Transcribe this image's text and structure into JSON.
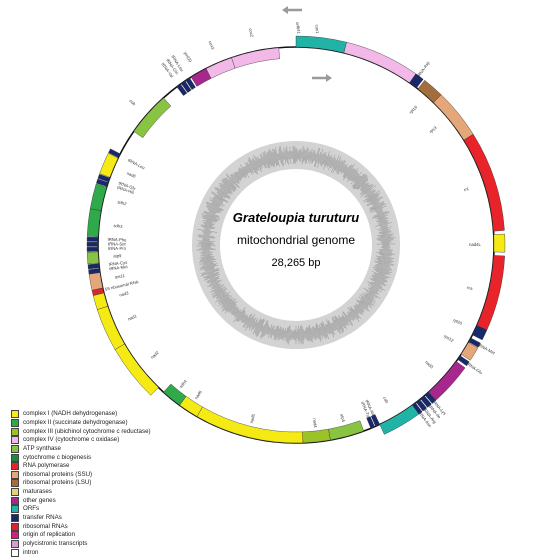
{
  "genome": {
    "species": "Grateloupia turuturu",
    "subtitle": "mitochondrial genome",
    "size_label": "28,265 bp"
  },
  "colors": {
    "complex_I": "#f5ea14",
    "complex_II": "#2eaa4a",
    "complex_III": "#9cc229",
    "complex_IV": "#f2b9e8",
    "atp": "#89c342",
    "ccm": "#1c8a3a",
    "rnapol": "#e8232a",
    "rps": "#e5a67a",
    "rpl": "#a36d3d",
    "maturase": "#e0d27a",
    "other": "#a7278f",
    "orf": "#21b3a6",
    "trna": "#18286b",
    "rrna": "#d9262d",
    "ori": "#cf2380",
    "poly": "#d99bd3",
    "intron": "#ffffff",
    "gc_dark": "#9d9d9d",
    "gc_light": "#d3d3d3"
  },
  "legend": [
    {
      "label": "complex I (NADH dehydrogenase)",
      "color": "#f5ea14"
    },
    {
      "label": "complex II (succinate dehydrogenase)",
      "color": "#2eaa4a"
    },
    {
      "label": "complex III (ubichinol cytochrome c reductase)",
      "color": "#9cc229"
    },
    {
      "label": "complex IV (cytochrome c oxidase)",
      "color": "#f2b9e8"
    },
    {
      "label": "ATP synthase",
      "color": "#89c342"
    },
    {
      "label": "cytochrome c biogenesis",
      "color": "#1c8a3a"
    },
    {
      "label": "RNA polymerase",
      "color": "#e8232a"
    },
    {
      "label": "ribosomal proteins (SSU)",
      "color": "#e5a67a"
    },
    {
      "label": "ribosomal proteins (LSU)",
      "color": "#a36d3d"
    },
    {
      "label": "maturases",
      "color": "#e0d27a"
    },
    {
      "label": "other genes",
      "color": "#a7278f"
    },
    {
      "label": "ORFs",
      "color": "#21b3a6"
    },
    {
      "label": "transfer RNAs",
      "color": "#18286b"
    },
    {
      "label": "ribosomal RNAs",
      "color": "#d9262d"
    },
    {
      "label": "origin of replication",
      "color": "#cf2380"
    },
    {
      "label": "polycistronic transcripts",
      "color": "#d99bd3"
    },
    {
      "label": "intron",
      "color": "#ffffff"
    }
  ],
  "genes": [
    {
      "name": "orf641",
      "start": 0,
      "end": 14,
      "strand": "out",
      "color": "#21b3a6"
    },
    {
      "name": "cox1",
      "start": 14,
      "end": 35,
      "strand": "out",
      "color": "#f2b9e8"
    },
    {
      "name": "tRNA-Asp",
      "start": 35,
      "end": 37.5,
      "strand": "out",
      "color": "#18286b"
    },
    {
      "name": "rpl16",
      "start": 38,
      "end": 44,
      "strand": "out",
      "color": "#a36d3d"
    },
    {
      "name": "rps3",
      "start": 44,
      "end": 58,
      "strand": "out",
      "color": "#e5a67a"
    },
    {
      "name": "rnl",
      "start": 58,
      "end": 86,
      "strand": "out",
      "color": "#e8232a"
    },
    {
      "name": "nad4L",
      "start": 87,
      "end": 92,
      "strand": "out",
      "color": "#f5ea14"
    },
    {
      "name": "rns",
      "start": 93,
      "end": 114,
      "strand": "out",
      "color": "#e8232a"
    },
    {
      "name": "rpl20",
      "start": 114,
      "end": 117,
      "strand": "out",
      "color": "#18286b"
    },
    {
      "name": "tRNA-Met",
      "start": 118,
      "end": 119.3,
      "strand": "out",
      "color": "#18286b"
    },
    {
      "name": "rps12",
      "start": 119.5,
      "end": 123.5,
      "strand": "out",
      "color": "#e5a67a"
    },
    {
      "name": "tRNA-Glu",
      "start": 124,
      "end": 125.3,
      "strand": "out",
      "color": "#18286b"
    },
    {
      "name": "nad3",
      "start": 126,
      "end": 138,
      "strand": "out",
      "color": "#a7278f"
    },
    {
      "name": "tRNA-Lys",
      "start": 138,
      "end": 139.3,
      "strand": "out",
      "color": "#18286b"
    },
    {
      "name": "tRNA-Ile",
      "start": 139.6,
      "end": 141,
      "strand": "out",
      "color": "#18286b"
    },
    {
      "name": "tRNA-Arg",
      "start": 141.3,
      "end": 142.6,
      "strand": "out",
      "color": "#18286b"
    },
    {
      "name": "tRNA-Asn",
      "start": 142.9,
      "end": 144.2,
      "strand": "out",
      "color": "#18286b"
    },
    {
      "name": "cob",
      "start": 144,
      "end": 155,
      "strand": "out",
      "color": "#21b3a6"
    },
    {
      "name": "tRNA-Ala",
      "start": 155,
      "end": 156.3,
      "strand": "in",
      "color": "#18286b"
    },
    {
      "name": "tRNA-Trp",
      "start": 156.6,
      "end": 157.8,
      "strand": "in",
      "color": "#18286b"
    },
    {
      "name": "atp4",
      "start": 160,
      "end": 170,
      "strand": "in",
      "color": "#89c342"
    },
    {
      "name": "nad4",
      "start": 170,
      "end": 178,
      "strand": "in",
      "color": "#9cc229"
    },
    {
      "name": "nad5",
      "start": 178,
      "end": 210,
      "strand": "in",
      "color": "#f5ea14"
    },
    {
      "name": "nad6",
      "start": 210,
      "end": 216,
      "strand": "in",
      "color": "#f5ea14"
    },
    {
      "name": "sdh4",
      "start": 216,
      "end": 222,
      "strand": "in",
      "color": "#2eaa4a"
    },
    {
      "name": "nad2",
      "start": 224,
      "end": 240,
      "strand": "out",
      "color": "#f5ea14"
    },
    {
      "name": "nad1",
      "start": 240,
      "end": 252,
      "strand": "out",
      "color": "#f5ea14"
    },
    {
      "name": "nad3b",
      "start": 252,
      "end": 256,
      "strand": "out",
      "color": "#f5ea14"
    },
    {
      "name": "5S ribosomal RNA",
      "start": 256,
      "end": 257.5,
      "strand": "out",
      "color": "#d9262d"
    },
    {
      "name": "rps11",
      "start": 257.5,
      "end": 262,
      "strand": "out",
      "color": "#e5a67a"
    },
    {
      "name": "tRNA-Met2",
      "start": 262,
      "end": 263.2,
      "strand": "out",
      "color": "#18286b"
    },
    {
      "name": "tRNA-Cys",
      "start": 263.4,
      "end": 264.6,
      "strand": "out",
      "color": "#18286b"
    },
    {
      "name": "atp9",
      "start": 264.8,
      "end": 268,
      "strand": "out",
      "color": "#89c342"
    },
    {
      "name": "tRNA-Pro",
      "start": 268.2,
      "end": 269.4,
      "strand": "out",
      "color": "#18286b"
    },
    {
      "name": "tRNA-Ser",
      "start": 269.6,
      "end": 270.8,
      "strand": "out",
      "color": "#18286b"
    },
    {
      "name": "tRNA-Phe",
      "start": 271,
      "end": 272.2,
      "strand": "out",
      "color": "#18286b"
    },
    {
      "name": "sdh3",
      "start": 272.4,
      "end": 280,
      "strand": "out",
      "color": "#2eaa4a"
    },
    {
      "name": "sdh2",
      "start": 280,
      "end": 287,
      "strand": "out",
      "color": "#2eaa4a"
    },
    {
      "name": "tRNA-His",
      "start": 287.2,
      "end": 288.4,
      "strand": "out",
      "color": "#18286b"
    },
    {
      "name": "tRNA-Gly",
      "start": 288.6,
      "end": 289.8,
      "strand": "out",
      "color": "#18286b"
    },
    {
      "name": "nad6b",
      "start": 290,
      "end": 296,
      "strand": "out",
      "color": "#f5ea14"
    },
    {
      "name": "tRNA-Leu",
      "start": 296.2,
      "end": 297.4,
      "strand": "out",
      "color": "#18286b"
    },
    {
      "name": "cob2",
      "start": 305,
      "end": 318,
      "strand": "in",
      "color": "#89c342"
    },
    {
      "name": "tRNA-Val",
      "start": 323,
      "end": 324.3,
      "strand": "in",
      "color": "#18286b"
    },
    {
      "name": "tRNA-Gln",
      "start": 324.6,
      "end": 325.9,
      "strand": "in",
      "color": "#18286b"
    },
    {
      "name": "tRNA-Leu2",
      "start": 326.2,
      "end": 327.5,
      "strand": "in",
      "color": "#18286b"
    },
    {
      "name": "ymf39",
      "start": 328,
      "end": 333,
      "strand": "in",
      "color": "#a7278f"
    },
    {
      "name": "cox3",
      "start": 333,
      "end": 341,
      "strand": "in",
      "color": "#f2b9e8"
    },
    {
      "name": "cox2",
      "start": 341,
      "end": 355,
      "strand": "in",
      "color": "#f2b9e8"
    }
  ],
  "gene_labels": [
    {
      "text": "orf641",
      "angle": 0.5,
      "side": "out",
      "rotate": 82
    },
    {
      "text": "cox1",
      "angle": 5.5,
      "side": "out",
      "rotate": 86
    },
    {
      "text": "tRNA-Asp",
      "angle": 36,
      "side": "out",
      "rotate": -54
    },
    {
      "text": "rpl16",
      "angle": 41,
      "side": "in",
      "rotate": -45
    },
    {
      "text": "rps3",
      "angle": 50,
      "side": "in",
      "rotate": -40
    },
    {
      "text": "rnl",
      "angle": 72,
      "side": "in",
      "rotate": -16
    },
    {
      "text": "nad4L",
      "angle": 90,
      "side": "in",
      "rotate": 0
    },
    {
      "text": "rns",
      "angle": 104,
      "side": "in",
      "rotate": 14
    },
    {
      "text": "rpl20",
      "angle": 115.5,
      "side": "in",
      "rotate": 25
    },
    {
      "text": "tRNA-Met",
      "angle": 118.7,
      "side": "out",
      "rotate": 28
    },
    {
      "text": "rps12",
      "angle": 121.5,
      "side": "in",
      "rotate": 31
    },
    {
      "text": "tRNA-Glu",
      "angle": 124.7,
      "side": "out",
      "rotate": 34
    },
    {
      "text": "nad3",
      "angle": 132,
      "side": "in",
      "rotate": 42
    },
    {
      "text": "tRNA-Lys",
      "angle": 138.7,
      "side": "out",
      "rotate": 48
    },
    {
      "text": "tRNA-Ile",
      "angle": 140.3,
      "side": "out",
      "rotate": 50
    },
    {
      "text": "tRNA-Arg",
      "angle": 142,
      "side": "out",
      "rotate": 52
    },
    {
      "text": "tRNA-Asn",
      "angle": 143.6,
      "side": "out",
      "rotate": 53
    },
    {
      "text": "cob",
      "angle": 150,
      "side": "in",
      "rotate": 60
    },
    {
      "text": "tRNA-Ala",
      "angle": 155.6,
      "side": "in",
      "rotate": 65
    },
    {
      "text": "tRNA-Trp",
      "angle": 157.2,
      "side": "in",
      "rotate": 67
    },
    {
      "text": "atp4",
      "angle": 165,
      "side": "in",
      "rotate": 75
    },
    {
      "text": "nad4",
      "angle": 174,
      "side": "in",
      "rotate": 84
    },
    {
      "text": "nad5",
      "angle": 194,
      "side": "in",
      "rotate": -76
    },
    {
      "text": "nad6",
      "angle": 213,
      "side": "in",
      "rotate": -57
    },
    {
      "text": "sdh4",
      "angle": 219,
      "side": "in",
      "rotate": -51
    },
    {
      "text": "nad2",
      "angle": 232,
      "side": "in",
      "rotate": -42
    },
    {
      "text": "nad1",
      "angle": 246,
      "side": "in",
      "rotate": -24
    },
    {
      "text": "nad3",
      "angle": 254,
      "side": "in",
      "rotate": -16
    },
    {
      "text": "5S ribosomal RNA",
      "angle": 256.8,
      "side": "in",
      "rotate": -13
    },
    {
      "text": "rps11",
      "angle": 259.8,
      "side": "in",
      "rotate": -10
    },
    {
      "text": "tRNA-Met",
      "angle": 262.6,
      "side": "in",
      "rotate": -7
    },
    {
      "text": "tRNA-Cys",
      "angle": 264,
      "side": "in",
      "rotate": -6
    },
    {
      "text": "atp9",
      "angle": 266.4,
      "side": "in",
      "rotate": -3
    },
    {
      "text": "tRNA-Pro",
      "angle": 268.8,
      "side": "in",
      "rotate": -1
    },
    {
      "text": "tRNA-Ser",
      "angle": 270.2,
      "side": "in",
      "rotate": 0
    },
    {
      "text": "tRNA-Phe",
      "angle": 271.6,
      "side": "in",
      "rotate": 2
    },
    {
      "text": "sdh3",
      "angle": 276,
      "side": "in",
      "rotate": 6
    },
    {
      "text": "sdh2",
      "angle": 283.5,
      "side": "in",
      "rotate": 13
    },
    {
      "text": "tRNA-His",
      "angle": 287.8,
      "side": "in",
      "rotate": 18
    },
    {
      "text": "tRNA-Gly",
      "angle": 289.2,
      "side": "in",
      "rotate": 19
    },
    {
      "text": "nad6",
      "angle": 293,
      "side": "in",
      "rotate": 23
    },
    {
      "text": "tRNA-Leu",
      "angle": 296.8,
      "side": "in",
      "rotate": 27
    },
    {
      "text": "cob",
      "angle": 311,
      "side": "out",
      "rotate": 41
    },
    {
      "text": "tRNA-Val",
      "angle": 323.6,
      "side": "out",
      "rotate": 54
    },
    {
      "text": "tRNA-Gln",
      "angle": 325.2,
      "side": "out",
      "rotate": 55
    },
    {
      "text": "tRNA-Leu",
      "angle": 326.8,
      "side": "out",
      "rotate": 57
    },
    {
      "text": "ymf39",
      "angle": 330,
      "side": "out",
      "rotate": 60
    },
    {
      "text": "cox3",
      "angle": 337,
      "side": "out",
      "rotate": 67
    },
    {
      "text": "cox2",
      "angle": 348,
      "side": "out",
      "rotate": 78
    }
  ],
  "strand_arrows": [
    {
      "name": "arrow-outer-strand",
      "direction": "left"
    },
    {
      "name": "arrow-inner-strand",
      "direction": "right"
    }
  ]
}
